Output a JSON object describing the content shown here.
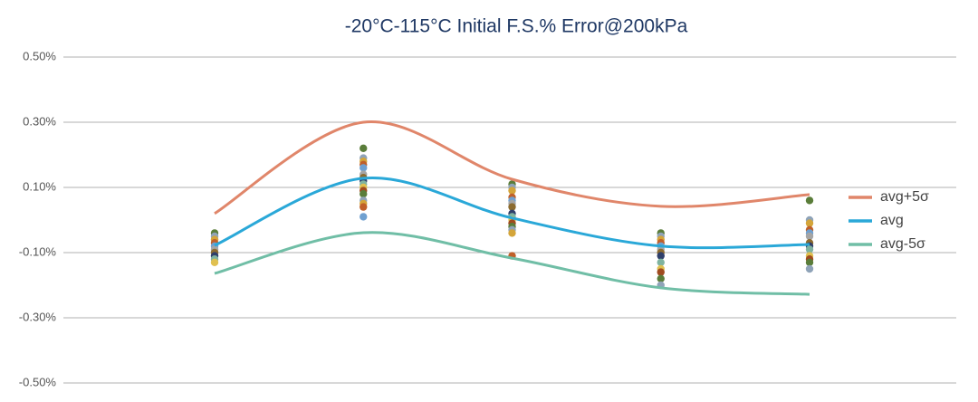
{
  "chart_data": {
    "type": "line",
    "title": "-20°C-115°C Initial F.S.% Error@200kPa",
    "categories": [
      null,
      null,
      null,
      null,
      null
    ],
    "series": [
      {
        "name": "avg+5σ",
        "color": "#e0866a",
        "values": [
          0.02,
          0.3,
          0.125,
          0.042,
          0.078
        ]
      },
      {
        "name": "avg",
        "color": "#2aa8d8",
        "values": [
          -0.078,
          0.128,
          0.006,
          -0.08,
          -0.075
        ]
      },
      {
        "name": "avg-5σ",
        "color": "#70bea6",
        "values": [
          -0.164,
          -0.039,
          -0.117,
          -0.208,
          -0.228
        ]
      }
    ],
    "samples": [
      [
        -0.04,
        -0.05,
        -0.06,
        -0.07,
        -0.08,
        -0.09,
        -0.1,
        -0.11,
        -0.12,
        -0.13
      ],
      [
        0.22,
        0.19,
        0.18,
        0.17,
        0.16,
        0.14,
        0.13,
        0.12,
        0.11,
        0.1,
        0.09,
        0.08,
        0.06,
        0.05,
        0.04,
        0.01
      ],
      [
        0.11,
        0.1,
        0.09,
        0.07,
        0.06,
        0.05,
        0.04,
        0.02,
        0.01,
        0.0,
        -0.01,
        -0.02,
        -0.03,
        -0.04,
        -0.11
      ],
      [
        -0.04,
        -0.05,
        -0.06,
        -0.07,
        -0.08,
        -0.09,
        -0.1,
        -0.11,
        -0.13,
        -0.15,
        -0.16,
        -0.18,
        -0.2
      ],
      [
        0.06,
        0.0,
        -0.01,
        -0.03,
        -0.04,
        -0.05,
        -0.07,
        -0.08,
        -0.09,
        -0.11,
        -0.12,
        -0.13,
        -0.15
      ]
    ],
    "sample_colors": [
      "#5a7d3a",
      "#8fa3b8",
      "#d4a53a",
      "#c0602a",
      "#6fa0d0",
      "#a5a5a5",
      "#8c6b2f",
      "#2f3f6b",
      "#7fb3a0",
      "#e0c050",
      "#a04b20"
    ],
    "ylim": [
      -0.5,
      0.5
    ],
    "yticks": [
      {
        "value": 0.5,
        "label": "0.50%"
      },
      {
        "value": 0.3,
        "label": "0.30%"
      },
      {
        "value": 0.1,
        "label": "0.10%"
      },
      {
        "value": -0.1,
        "label": "-0.10%"
      },
      {
        "value": -0.3,
        "label": "-0.30%"
      },
      {
        "value": -0.5,
        "label": "-0.50%"
      }
    ],
    "grid": true,
    "legend": "right"
  }
}
